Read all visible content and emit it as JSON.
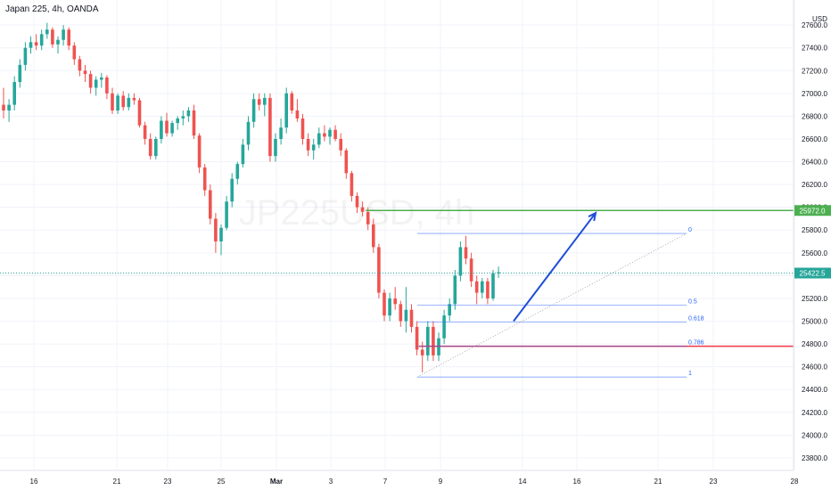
{
  "header": {
    "symbol_label": "Japan 225, 4h, OANDA",
    "currency": "USD"
  },
  "watermark": "JP225USD, 4h",
  "colors": {
    "up": "#26a69a",
    "down": "#ef5350",
    "resistance": "#4caf50",
    "support": "#f23645",
    "fib": "#2962ff",
    "arrow": "#1f4fd8",
    "axis_text": "#131722",
    "price_tag_bg": "#26a69a",
    "resistance_tag_bg": "#4caf50"
  },
  "chart_data": {
    "type": "candlestick",
    "x_tick_labels": [
      "16",
      "21",
      "23",
      "25",
      "Mar",
      "3",
      "7",
      "9",
      "14",
      "16",
      "21",
      "23",
      "28"
    ],
    "y_tick_labels": [
      "23800.0",
      "24000.0",
      "24200.0",
      "24400.0",
      "24600.0",
      "24800.0",
      "25000.0",
      "25200.0",
      "25400.0",
      "25600.0",
      "25800.0",
      "26000.0",
      "26200.0",
      "26400.0",
      "26600.0",
      "26800.0",
      "27000.0",
      "27200.0",
      "27400.0",
      "27600.0"
    ],
    "ylim": [
      23690,
      27820
    ],
    "current_price": 25422.5,
    "current_price_label": "25422.5",
    "resistance_level": 25972.0,
    "resistance_label": "25972.0",
    "support_level": 24780.0,
    "fib_retracement": {
      "high": 25770,
      "low": 24510,
      "levels": [
        {
          "ratio": 0,
          "label": "0"
        },
        {
          "ratio": 0.5,
          "label": "0.5"
        },
        {
          "ratio": 0.618,
          "label": "0.618"
        },
        {
          "ratio": 0.786,
          "label": "0.786"
        },
        {
          "ratio": 1,
          "label": "1"
        }
      ]
    },
    "projection_arrow": {
      "from_price": 25000,
      "to_price": 25950
    },
    "candles": [
      [
        26900,
        27050,
        26780,
        26850
      ],
      [
        26850,
        26950,
        26750,
        26900
      ],
      [
        26900,
        27150,
        26850,
        27100
      ],
      [
        27100,
        27300,
        27050,
        27250
      ],
      [
        27250,
        27450,
        27200,
        27400
      ],
      [
        27400,
        27500,
        27350,
        27450
      ],
      [
        27450,
        27520,
        27380,
        27420
      ],
      [
        27420,
        27560,
        27380,
        27520
      ],
      [
        27520,
        27620,
        27480,
        27560
      ],
      [
        27560,
        27580,
        27400,
        27430
      ],
      [
        27430,
        27500,
        27350,
        27470
      ],
      [
        27470,
        27600,
        27420,
        27560
      ],
      [
        27560,
        27580,
        27380,
        27420
      ],
      [
        27420,
        27450,
        27250,
        27300
      ],
      [
        27300,
        27330,
        27150,
        27200
      ],
      [
        27200,
        27250,
        27100,
        27170
      ],
      [
        27170,
        27200,
        27000,
        27050
      ],
      [
        27050,
        27150,
        26980,
        27120
      ],
      [
        27120,
        27180,
        27050,
        27140
      ],
      [
        27140,
        27160,
        26950,
        27000
      ],
      [
        27000,
        27050,
        26820,
        26850
      ],
      [
        26850,
        27000,
        26820,
        26980
      ],
      [
        26980,
        27020,
        26850,
        26880
      ],
      [
        26880,
        27000,
        26850,
        26960
      ],
      [
        26960,
        27000,
        26900,
        26940
      ],
      [
        26940,
        26960,
        26700,
        26720
      ],
      [
        26720,
        26750,
        26550,
        26600
      ],
      [
        26600,
        26650,
        26420,
        26450
      ],
      [
        26450,
        26620,
        26420,
        26600
      ],
      [
        26600,
        26800,
        26560,
        26760
      ],
      [
        26760,
        26830,
        26620,
        26650
      ],
      [
        26650,
        26760,
        26620,
        26740
      ],
      [
        26740,
        26800,
        26680,
        26780
      ],
      [
        26780,
        26850,
        26720,
        26800
      ],
      [
        26800,
        26880,
        26750,
        26850
      ],
      [
        26850,
        26900,
        26600,
        26630
      ],
      [
        26630,
        26650,
        26300,
        26350
      ],
      [
        26350,
        26380,
        26100,
        26150
      ],
      [
        26150,
        26200,
        25850,
        25900
      ],
      [
        25900,
        25950,
        25600,
        25700
      ],
      [
        25700,
        25850,
        25580,
        25820
      ],
      [
        25820,
        26100,
        25800,
        26050
      ],
      [
        26050,
        26300,
        26000,
        26250
      ],
      [
        26250,
        26400,
        26200,
        26380
      ],
      [
        26380,
        26600,
        26350,
        26550
      ],
      [
        26550,
        26800,
        26500,
        26750
      ],
      [
        26750,
        27000,
        26700,
        26950
      ],
      [
        26950,
        27000,
        26850,
        26900
      ],
      [
        26900,
        27000,
        26800,
        26960
      ],
      [
        26960,
        27000,
        26400,
        26450
      ],
      [
        26450,
        26650,
        26400,
        26600
      ],
      [
        26600,
        26780,
        26550,
        26700
      ],
      [
        26700,
        27050,
        26650,
        27000
      ],
      [
        27000,
        27020,
        26820,
        26850
      ],
      [
        26850,
        26950,
        26750,
        26780
      ],
      [
        26780,
        26820,
        26550,
        26600
      ],
      [
        26600,
        26650,
        26450,
        26500
      ],
      [
        26500,
        26600,
        26420,
        26550
      ],
      [
        26550,
        26700,
        26520,
        26650
      ],
      [
        26650,
        26720,
        26580,
        26620
      ],
      [
        26620,
        26700,
        26550,
        26680
      ],
      [
        26680,
        26720,
        26580,
        26600
      ],
      [
        26600,
        26650,
        26450,
        26500
      ],
      [
        26500,
        26520,
        26250,
        26300
      ],
      [
        26300,
        26320,
        26050,
        26100
      ],
      [
        26100,
        26130,
        25950,
        26000
      ],
      [
        26000,
        26050,
        25920,
        25960
      ],
      [
        25960,
        26000,
        25800,
        25850
      ],
      [
        25850,
        25900,
        25600,
        25650
      ],
      [
        25650,
        25680,
        25200,
        25250
      ],
      [
        25250,
        25280,
        25000,
        25050
      ],
      [
        25050,
        25250,
        25000,
        25200
      ],
      [
        25200,
        25300,
        25100,
        25150
      ],
      [
        25150,
        25180,
        24950,
        25000
      ],
      [
        25000,
        25300,
        24900,
        25100
      ],
      [
        25100,
        25150,
        24900,
        24950
      ],
      [
        24950,
        25000,
        24700,
        24750
      ],
      [
        24750,
        24820,
        24550,
        24700
      ],
      [
        24700,
        25000,
        24650,
        24950
      ],
      [
        24950,
        25000,
        24650,
        24700
      ],
      [
        24700,
        24900,
        24650,
        24850
      ],
      [
        24850,
        25100,
        24800,
        25050
      ],
      [
        25050,
        25200,
        25000,
        25150
      ],
      [
        25150,
        25450,
        25100,
        25400
      ],
      [
        25400,
        25700,
        25350,
        25650
      ],
      [
        25650,
        25750,
        25500,
        25550
      ],
      [
        25550,
        25600,
        25300,
        25350
      ],
      [
        25350,
        25400,
        25150,
        25250
      ],
      [
        25250,
        25380,
        25200,
        25350
      ],
      [
        25350,
        25380,
        25150,
        25200
      ],
      [
        25200,
        25450,
        25180,
        25420
      ],
      [
        25420,
        25480,
        25380,
        25430
      ]
    ]
  }
}
